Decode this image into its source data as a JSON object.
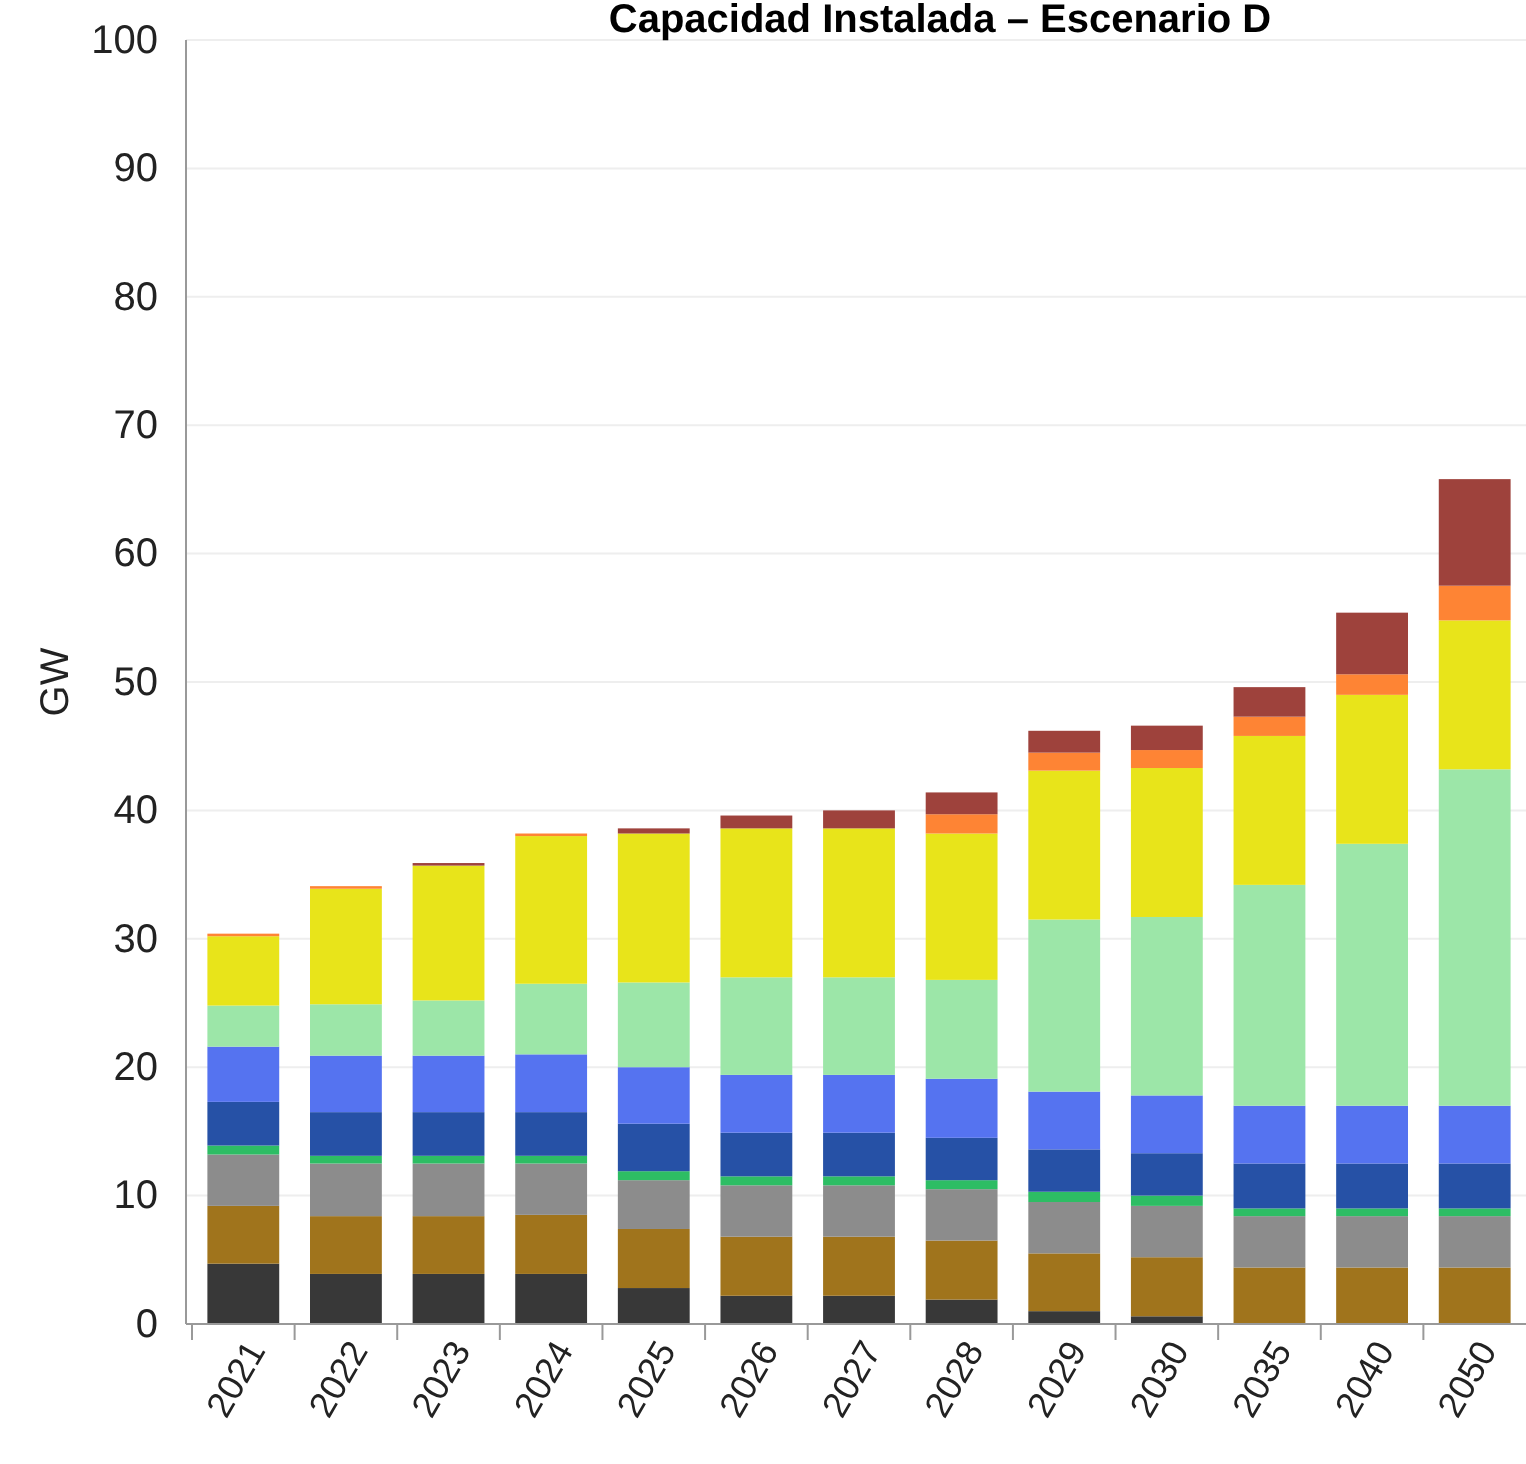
{
  "chart_data": {
    "type": "bar",
    "title": "Capacidad Instalada – Escenario D",
    "ylabel": "GW",
    "stacked": true,
    "grid": "y",
    "ylim": [
      0,
      100
    ],
    "yticks": [
      0,
      10,
      20,
      30,
      40,
      50,
      60,
      70,
      80,
      90,
      100
    ],
    "categories": [
      "2021",
      "2022",
      "2023",
      "2024",
      "2025",
      "2026",
      "2027",
      "2028",
      "2029",
      "2030",
      "2035",
      "2040",
      "2050"
    ],
    "series": [
      {
        "color": "#383838",
        "values": [
          4.7,
          3.9,
          3.9,
          3.9,
          2.8,
          2.2,
          2.2,
          1.9,
          1.0,
          0.6,
          0,
          0,
          0
        ]
      },
      {
        "color": "#a0741c",
        "values": [
          4.5,
          4.5,
          4.5,
          4.6,
          4.6,
          4.6,
          4.6,
          4.6,
          4.5,
          4.6,
          4.4,
          4.4,
          4.4
        ]
      },
      {
        "color": "#8c8c8c",
        "values": [
          4.0,
          4.1,
          4.1,
          4.0,
          3.8,
          4.0,
          4.0,
          4.0,
          4.0,
          4.0,
          4.0,
          4.0,
          4.0
        ]
      },
      {
        "color": "#2dbd64",
        "values": [
          0.7,
          0.6,
          0.6,
          0.6,
          0.7,
          0.7,
          0.7,
          0.7,
          0.8,
          0.8,
          0.6,
          0.6,
          0.6
        ]
      },
      {
        "color": "#2651a6",
        "values": [
          3.4,
          3.4,
          3.4,
          3.4,
          3.7,
          3.4,
          3.4,
          3.3,
          3.3,
          3.3,
          3.5,
          3.5,
          3.5
        ]
      },
      {
        "color": "#5573f0",
        "values": [
          4.3,
          4.4,
          4.4,
          4.5,
          4.4,
          4.5,
          4.5,
          4.6,
          4.5,
          4.5,
          4.5,
          4.5,
          4.5
        ]
      },
      {
        "color": "#9ce6a8",
        "values": [
          3.2,
          4.0,
          4.3,
          5.5,
          6.6,
          7.6,
          7.6,
          7.7,
          13.4,
          13.9,
          17.2,
          20.4,
          26.2
        ]
      },
      {
        "color": "#e8e41a",
        "values": [
          5.4,
          9.0,
          10.5,
          11.5,
          11.6,
          11.6,
          11.6,
          11.4,
          11.6,
          11.6,
          11.6,
          11.6,
          11.6
        ]
      },
      {
        "color": "#fe8434",
        "values": [
          0.2,
          0.2,
          0,
          0.2,
          0,
          0,
          0,
          1.5,
          1.4,
          1.4,
          1.5,
          1.6,
          2.7
        ]
      },
      {
        "color": "#9e423c",
        "values": [
          0,
          0,
          0.2,
          0,
          0.4,
          1.0,
          1.4,
          1.7,
          1.7,
          1.9,
          2.3,
          4.8,
          8.3
        ]
      }
    ]
  }
}
